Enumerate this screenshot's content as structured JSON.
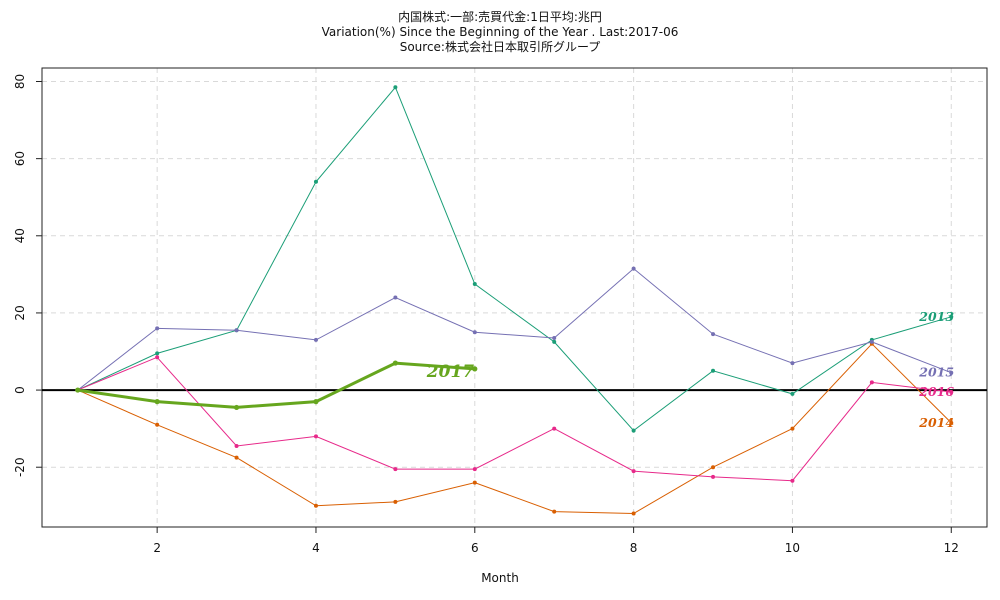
{
  "chart_data": {
    "type": "line",
    "title": "内国株式:一部:売買代金:1日平均:兆円",
    "subtitle": "Variation(%) Since the Beginning of the Year . Last:2017-06",
    "source": "Source:株式会社日本取引所グループ",
    "xlabel": "Month",
    "ylabel": "",
    "xlim": [
      0.55,
      12.45
    ],
    "ylim": [
      -35.5,
      83.5
    ],
    "x_ticks": [
      2,
      4,
      6,
      8,
      10,
      12
    ],
    "y_ticks": [
      -20,
      0,
      20,
      40,
      60,
      80
    ],
    "grid": true,
    "reference_line": 0,
    "series": [
      {
        "name": "2013",
        "color": "#1b9e77",
        "x": [
          1,
          2,
          3,
          4,
          5,
          6,
          7,
          8,
          9,
          10,
          11,
          12
        ],
        "values": [
          0,
          9.5,
          15.5,
          54,
          78.5,
          27.5,
          12.5,
          -10.5,
          5,
          -1,
          13,
          19
        ],
        "emphasis": false
      },
      {
        "name": "2014",
        "color": "#d95f02",
        "x": [
          1,
          2,
          3,
          4,
          5,
          6,
          7,
          8,
          9,
          10,
          11,
          12
        ],
        "values": [
          0,
          -9,
          -17.5,
          -30,
          -29,
          -24,
          -31.5,
          -32,
          -20,
          -10,
          12,
          -8.5
        ],
        "emphasis": false
      },
      {
        "name": "2015",
        "color": "#7570b3",
        "x": [
          1,
          2,
          3,
          4,
          5,
          6,
          7,
          8,
          9,
          10,
          11,
          12
        ],
        "values": [
          0,
          16,
          15.5,
          13,
          24,
          15,
          13.5,
          31.5,
          14.5,
          7,
          12.5,
          4.5
        ],
        "emphasis": false
      },
      {
        "name": "2016",
        "color": "#e7298a",
        "x": [
          1,
          2,
          3,
          4,
          5,
          6,
          7,
          8,
          9,
          10,
          11,
          12
        ],
        "values": [
          0,
          8.5,
          -14.5,
          -12,
          -20.5,
          -20.5,
          -10,
          -21,
          -22.5,
          -23.5,
          2,
          -0.5
        ],
        "emphasis": false
      },
      {
        "name": "2017",
        "color": "#66a61e",
        "x": [
          1,
          2,
          3,
          4,
          5,
          6
        ],
        "values": [
          0,
          -3,
          -4.5,
          -3,
          7,
          5.5
        ],
        "emphasis": true
      }
    ]
  }
}
